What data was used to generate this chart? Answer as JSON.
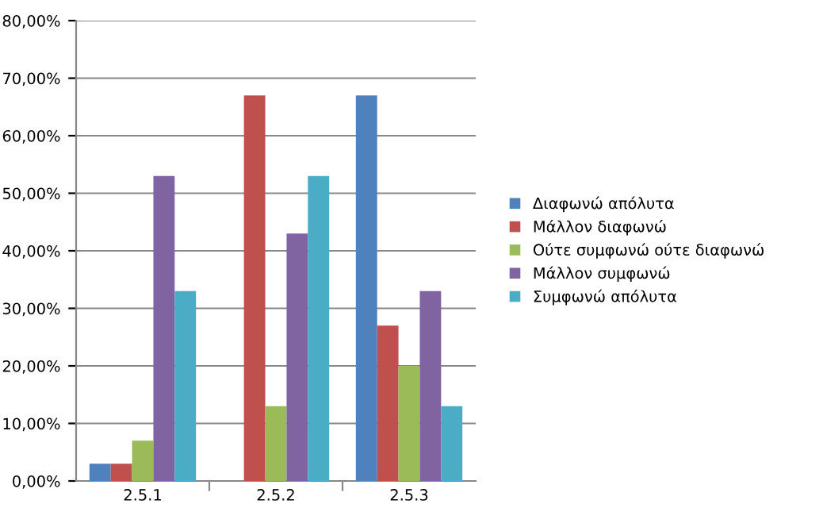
{
  "chart_data": {
    "type": "bar",
    "categories": [
      "2.5.1",
      "2.5.2",
      "2.5.3"
    ],
    "series": [
      {
        "name": "Διαφωνώ απόλυτα",
        "color": "#4f81bd",
        "values": [
          3,
          0,
          67
        ]
      },
      {
        "name": "Μάλλον διαφωνώ",
        "color": "#c0504d",
        "values": [
          3,
          67,
          27
        ]
      },
      {
        "name": "Ούτε συμφωνώ ούτε διαφωνώ",
        "color": "#9bbb59",
        "values": [
          7,
          13,
          20
        ]
      },
      {
        "name": "Μάλλον συμφωνώ",
        "color": "#8064a2",
        "values": [
          53,
          43,
          33
        ]
      },
      {
        "name": "Συμφωνώ απόλυτα",
        "color": "#4bacc6",
        "values": [
          33,
          53,
          13
        ]
      }
    ],
    "ylim": [
      0,
      80
    ],
    "yticks": [
      {
        "value": 0,
        "label": "0,00%"
      },
      {
        "value": 10,
        "label": "10,00%"
      },
      {
        "value": 20,
        "label": "20,00%"
      },
      {
        "value": 30,
        "label": "30,00%"
      },
      {
        "value": 40,
        "label": "40,00%"
      },
      {
        "value": 50,
        "label": "50,00%"
      },
      {
        "value": 60,
        "label": "60,00%"
      },
      {
        "value": 70,
        "label": "70,00%"
      },
      {
        "value": 80,
        "label": "80,00%"
      }
    ],
    "grid": "y",
    "legend": "right"
  }
}
